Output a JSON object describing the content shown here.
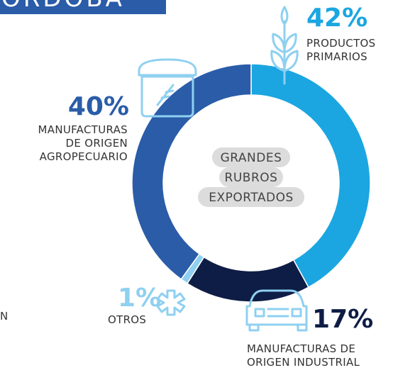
{
  "header": {
    "title": "ÓRDOBA",
    "fragment": "N"
  },
  "chart_data": {
    "type": "donut",
    "center_text": [
      "GRANDES",
      "RUBROS",
      "EXPORTADOS"
    ],
    "series": [
      {
        "name": "PRODUCTOS\nPRIMARIOS",
        "color": "#1ba6e1",
        "value": 42,
        "value_label": "42%"
      },
      {
        "name": "MANUFACTURAS DE\nORIGEN INDUSTRIAL",
        "color": "#0e1d45",
        "value": 17,
        "value_label": "17%"
      },
      {
        "name": "OTROS",
        "color": "#8fd0f0",
        "value": 1,
        "value_label": "1%"
      },
      {
        "name": "MANUFACTURAS\nDE ORIGEN\nAGROPECUARIO",
        "color": "#2a5ca8",
        "value": 40,
        "value_label": "40%"
      }
    ]
  }
}
